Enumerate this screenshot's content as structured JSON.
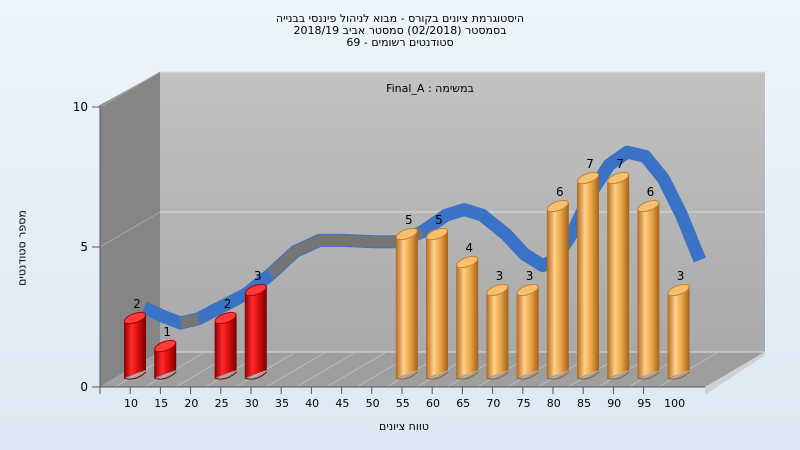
{
  "titles": [
    "היסטוגרמת ציונים בקורס - מבוא לניהול פיננסי בבנייה",
    "בסמסטר  (02/2018)  סמסטר אביב 2018/19",
    "סטודנטים רשומים - 69"
  ],
  "colors": {
    "low": "#e01010",
    "high": "#e9a444",
    "curve_blue": "#3a72c6",
    "curve_gray": "#757575",
    "wall": "#858585",
    "back": "#b4b4b4",
    "floor": "#9a9a9a"
  },
  "chart_data": {
    "type": "bar",
    "subtitle": "Final_A : במשימה",
    "xlabel": "טווח ציונים",
    "ylabel": "מספר סטודנטים",
    "x_ticks": [
      10,
      15,
      20,
      25,
      30,
      35,
      40,
      45,
      50,
      55,
      60,
      65,
      70,
      75,
      80,
      85,
      90,
      95,
      100
    ],
    "y_ticks": [
      0,
      5,
      10
    ],
    "ylim": [
      0,
      10
    ],
    "pass_threshold": 55,
    "bars": [
      {
        "x": 10,
        "value": 2
      },
      {
        "x": 15,
        "value": 1
      },
      {
        "x": 20,
        "value": 0
      },
      {
        "x": 25,
        "value": 2
      },
      {
        "x": 30,
        "value": 3
      },
      {
        "x": 35,
        "value": 0
      },
      {
        "x": 40,
        "value": 0
      },
      {
        "x": 45,
        "value": 0
      },
      {
        "x": 50,
        "value": 0
      },
      {
        "x": 55,
        "value": 5
      },
      {
        "x": 60,
        "value": 5
      },
      {
        "x": 65,
        "value": 4
      },
      {
        "x": 70,
        "value": 3
      },
      {
        "x": 75,
        "value": 3
      },
      {
        "x": 80,
        "value": 6
      },
      {
        "x": 85,
        "value": 7
      },
      {
        "x": 90,
        "value": 7
      },
      {
        "x": 95,
        "value": 6
      },
      {
        "x": 100,
        "value": 3
      }
    ],
    "curve": [
      {
        "x": 12,
        "y": 2.3
      },
      {
        "x": 15,
        "y": 2.0
      },
      {
        "x": 18,
        "y": 1.75
      },
      {
        "x": 21,
        "y": 1.9
      },
      {
        "x": 25,
        "y": 2.35
      },
      {
        "x": 29,
        "y": 2.8
      },
      {
        "x": 33,
        "y": 3.5
      },
      {
        "x": 37,
        "y": 4.3
      },
      {
        "x": 41,
        "y": 4.7
      },
      {
        "x": 45,
        "y": 4.7
      },
      {
        "x": 50,
        "y": 4.65
      },
      {
        "x": 54,
        "y": 4.65
      },
      {
        "x": 58,
        "y": 5.0
      },
      {
        "x": 62,
        "y": 5.6
      },
      {
        "x": 65,
        "y": 5.8
      },
      {
        "x": 68,
        "y": 5.6
      },
      {
        "x": 72,
        "y": 4.9
      },
      {
        "x": 75,
        "y": 4.2
      },
      {
        "x": 78,
        "y": 3.8
      },
      {
        "x": 80,
        "y": 4.0
      },
      {
        "x": 83,
        "y": 5.0
      },
      {
        "x": 86,
        "y": 6.4
      },
      {
        "x": 89,
        "y": 7.4
      },
      {
        "x": 92,
        "y": 7.85
      },
      {
        "x": 95,
        "y": 7.7
      },
      {
        "x": 98,
        "y": 6.9
      },
      {
        "x": 101,
        "y": 5.6
      },
      {
        "x": 104,
        "y": 4.0
      }
    ]
  }
}
